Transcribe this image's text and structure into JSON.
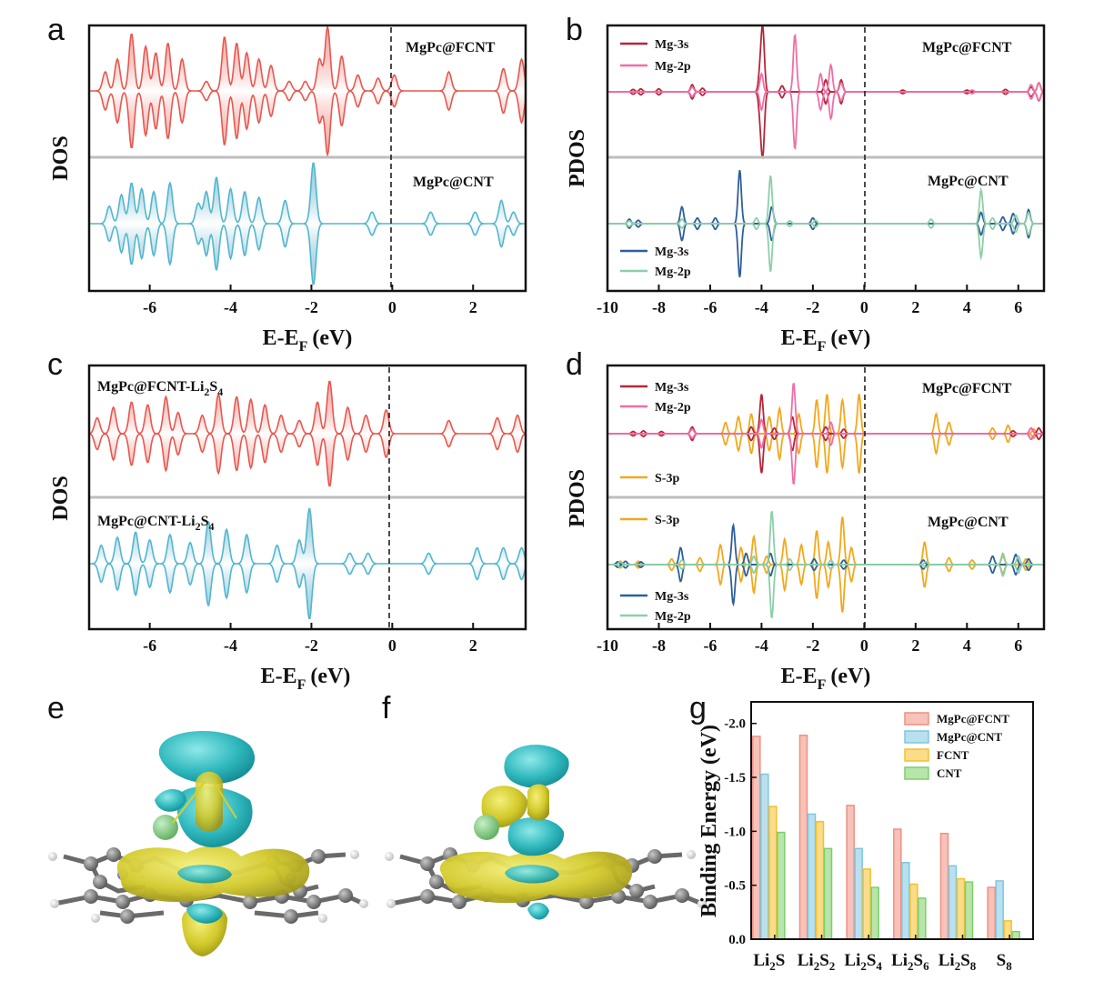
{
  "panel_letters": [
    "a",
    "b",
    "c",
    "d",
    "e",
    "f",
    "g"
  ],
  "xlabel_main": "E-E",
  "xlabel_sub": "F",
  "xlabel_unit": "(eV)",
  "panel_a": {
    "ylabel": "DOS",
    "top_label": "MgPc@FCNT",
    "bottom_label": "MgPc@CNT"
  },
  "panel_b": {
    "ylabel": "PDOS",
    "top_label": "MgPc@FCNT",
    "bottom_label": "MgPc@CNT",
    "top_legend": [
      "Mg-3s",
      "Mg-2p"
    ],
    "bottom_legend": [
      "Mg-3s",
      "Mg-2p"
    ]
  },
  "panel_c": {
    "ylabel": "DOS",
    "top_label_main": "MgPc@FCNT-Li",
    "top_label_sub1": "2",
    "top_label_mid": "S",
    "top_label_sub2": "4",
    "bottom_label_main": "MgPc@CNT-Li",
    "bottom_label_sub1": "2",
    "bottom_label_mid": "S",
    "bottom_label_sub2": "4"
  },
  "panel_d": {
    "ylabel": "PDOS",
    "top_label": "MgPc@FCNT",
    "bottom_label": "MgPc@CNT",
    "top_legend": [
      "Mg-3s",
      "Mg-2p",
      "S-3p"
    ],
    "bottom_legend": [
      "S-3p",
      "Mg-3s",
      "Mg-2p"
    ]
  },
  "colors": {
    "fcnt": "#e8574e",
    "cnt": "#52b6cf",
    "mg3s_fcnt": "#b5263a",
    "mg2p_fcnt": "#ef6fa6",
    "mg3s_cnt": "#2d5f9a",
    "mg2p_cnt": "#8dcfa8",
    "s3p": "#f2a81c",
    "iso_cyan": "#3fc5c9",
    "iso_yellow": "#d9d12a",
    "atom_c": "#7a7a7a",
    "atom_h": "#e8e8e8",
    "atom_n": "#6b6fd6",
    "atom_cl": "#7fc97f"
  },
  "chart_data": [
    {
      "panel": "a",
      "type": "area",
      "x_ticks": [
        -6,
        -4,
        -2,
        0,
        2
      ],
      "xlim": [
        -7.5,
        3.3
      ],
      "series": [
        {
          "name": "MgPc@FCNT",
          "peaks": [
            [
              -7.1,
              0.3
            ],
            [
              -6.8,
              0.5
            ],
            [
              -6.45,
              0.9
            ],
            [
              -6.1,
              0.7
            ],
            [
              -5.85,
              0.6
            ],
            [
              -5.55,
              0.75
            ],
            [
              -5.2,
              0.5
            ],
            [
              -4.6,
              0.15
            ],
            [
              -4.15,
              0.85
            ],
            [
              -3.85,
              0.75
            ],
            [
              -3.6,
              0.6
            ],
            [
              -3.3,
              0.5
            ],
            [
              -3.0,
              0.4
            ],
            [
              -2.55,
              0.15
            ],
            [
              -2.15,
              0.15
            ],
            [
              -1.8,
              0.5
            ],
            [
              -1.6,
              1.0
            ],
            [
              -1.25,
              0.55
            ],
            [
              -0.85,
              0.25
            ],
            [
              -0.35,
              0.2
            ],
            [
              0.05,
              0.25
            ],
            [
              1.4,
              0.3
            ],
            [
              2.75,
              0.35
            ],
            [
              3.2,
              0.5
            ]
          ]
        },
        {
          "name": "MgPc@CNT",
          "peaks": [
            [
              -7.0,
              0.3
            ],
            [
              -6.7,
              0.5
            ],
            [
              -6.45,
              0.7
            ],
            [
              -6.2,
              0.6
            ],
            [
              -5.9,
              0.55
            ],
            [
              -5.5,
              0.7
            ],
            [
              -4.8,
              0.35
            ],
            [
              -4.6,
              0.55
            ],
            [
              -4.35,
              0.8
            ],
            [
              -4.0,
              0.6
            ],
            [
              -3.65,
              0.55
            ],
            [
              -3.3,
              0.45
            ],
            [
              -2.65,
              0.4
            ],
            [
              -1.95,
              1.05
            ],
            [
              -0.5,
              0.2
            ],
            [
              0.95,
              0.2
            ],
            [
              2.05,
              0.2
            ],
            [
              2.7,
              0.4
            ],
            [
              3.0,
              0.2
            ]
          ]
        }
      ]
    },
    {
      "panel": "b",
      "type": "line",
      "x_ticks": [
        -10,
        -8,
        -6,
        -4,
        -2,
        0,
        2,
        4,
        6
      ],
      "xlim": [
        -10,
        7
      ],
      "series": [
        {
          "name": "Mg-3s",
          "group": "MgPc@FCNT",
          "peaks": [
            [
              -9.0,
              0.04
            ],
            [
              -8.7,
              0.05
            ],
            [
              -8.0,
              0.05
            ],
            [
              -6.7,
              0.12
            ],
            [
              -6.3,
              0.06
            ],
            [
              -4.05,
              0.35
            ],
            [
              -3.95,
              1.0
            ],
            [
              -3.2,
              0.1
            ],
            [
              -1.5,
              0.2
            ],
            [
              -0.9,
              0.2
            ],
            [
              1.5,
              0.03
            ],
            [
              4.0,
              0.03
            ],
            [
              5.5,
              0.04
            ],
            [
              6.5,
              0.08
            ],
            [
              6.8,
              0.15
            ]
          ]
        },
        {
          "name": "Mg-2p",
          "group": "MgPc@FCNT",
          "peaks": [
            [
              -6.7,
              0.08
            ],
            [
              -4.0,
              0.3
            ],
            [
              -2.7,
              0.95
            ],
            [
              -1.7,
              0.3
            ],
            [
              -1.3,
              0.45
            ],
            [
              -0.9,
              0.15
            ],
            [
              4.2,
              0.03
            ],
            [
              6.5,
              0.12
            ],
            [
              6.8,
              0.15
            ]
          ]
        },
        {
          "name": "Mg-3s",
          "group": "MgPc@CNT",
          "peaks": [
            [
              -9.15,
              0.08
            ],
            [
              -8.8,
              0.06
            ],
            [
              -7.1,
              0.3
            ],
            [
              -6.5,
              0.1
            ],
            [
              -5.8,
              0.1
            ],
            [
              -4.85,
              0.95
            ],
            [
              -3.6,
              0.3
            ],
            [
              -2.0,
              0.1
            ],
            [
              4.55,
              0.2
            ],
            [
              5.4,
              0.12
            ],
            [
              5.8,
              0.18
            ],
            [
              6.4,
              0.25
            ]
          ]
        },
        {
          "name": "Mg-2p",
          "group": "MgPc@CNT",
          "peaks": [
            [
              -9.15,
              0.05
            ],
            [
              -7.1,
              0.08
            ],
            [
              -4.2,
              0.1
            ],
            [
              -3.65,
              0.85
            ],
            [
              -2.9,
              0.05
            ],
            [
              -1.9,
              0.06
            ],
            [
              2.6,
              0.08
            ],
            [
              4.55,
              0.6
            ],
            [
              5.0,
              0.1
            ],
            [
              5.9,
              0.15
            ],
            [
              6.4,
              0.2
            ]
          ]
        }
      ]
    },
    {
      "panel": "c",
      "type": "area",
      "x_ticks": [
        -6,
        -4,
        -2,
        0,
        2
      ],
      "xlim": [
        -7.5,
        3.3
      ],
      "series": [
        {
          "name": "MgPc@FCNT-Li2S4",
          "peaks": [
            [
              -7.3,
              0.3
            ],
            [
              -6.9,
              0.5
            ],
            [
              -6.45,
              0.6
            ],
            [
              -6.05,
              0.55
            ],
            [
              -5.6,
              0.7
            ],
            [
              -5.3,
              0.4
            ],
            [
              -4.7,
              0.35
            ],
            [
              -4.3,
              0.75
            ],
            [
              -3.85,
              0.7
            ],
            [
              -3.5,
              0.65
            ],
            [
              -3.15,
              0.55
            ],
            [
              -2.75,
              0.35
            ],
            [
              -2.3,
              0.25
            ],
            [
              -1.85,
              0.6
            ],
            [
              -1.55,
              1.0
            ],
            [
              -1.1,
              0.5
            ],
            [
              -0.65,
              0.35
            ],
            [
              -0.15,
              0.45
            ],
            [
              1.4,
              0.25
            ],
            [
              2.6,
              0.3
            ],
            [
              3.1,
              0.35
            ]
          ]
        },
        {
          "name": "MgPc@CNT-Li2S4",
          "peaks": [
            [
              -7.2,
              0.35
            ],
            [
              -6.8,
              0.5
            ],
            [
              -6.35,
              0.6
            ],
            [
              -6.0,
              0.45
            ],
            [
              -5.5,
              0.55
            ],
            [
              -5.0,
              0.4
            ],
            [
              -4.55,
              0.8
            ],
            [
              -4.1,
              0.65
            ],
            [
              -3.6,
              0.55
            ],
            [
              -2.85,
              0.35
            ],
            [
              -2.3,
              0.45
            ],
            [
              -2.05,
              1.05
            ],
            [
              -1.05,
              0.2
            ],
            [
              -0.6,
              0.2
            ],
            [
              0.9,
              0.2
            ],
            [
              2.1,
              0.3
            ],
            [
              2.75,
              0.3
            ],
            [
              3.2,
              0.3
            ]
          ]
        }
      ]
    },
    {
      "panel": "d",
      "type": "line",
      "x_ticks": [
        -10,
        -8,
        -6,
        -4,
        -2,
        0,
        2,
        4,
        6
      ],
      "xlim": [
        -10,
        7
      ],
      "series": [
        {
          "name": "Mg-3s",
          "group": "MgPc@FCNT",
          "peaks": [
            [
              -9.0,
              0.04
            ],
            [
              -8.6,
              0.05
            ],
            [
              -7.9,
              0.04
            ],
            [
              -6.7,
              0.12
            ],
            [
              -4.4,
              0.12
            ],
            [
              -4.0,
              0.7
            ],
            [
              -3.5,
              0.1
            ],
            [
              -2.8,
              0.3
            ],
            [
              -1.5,
              0.12
            ],
            [
              -0.8,
              0.08
            ],
            [
              5.8,
              0.05
            ],
            [
              6.5,
              0.1
            ],
            [
              6.8,
              0.1
            ]
          ]
        },
        {
          "name": "Mg-2p",
          "group": "MgPc@FCNT",
          "peaks": [
            [
              -6.7,
              0.08
            ],
            [
              -4.0,
              0.25
            ],
            [
              -2.75,
              0.9
            ],
            [
              -1.3,
              0.2
            ],
            [
              6.5,
              0.1
            ]
          ]
        },
        {
          "name": "S-3p",
          "group": "MgPc@FCNT",
          "peaks": [
            [
              -6.7,
              0.1
            ],
            [
              -5.4,
              0.2
            ],
            [
              -4.9,
              0.3
            ],
            [
              -4.4,
              0.35
            ],
            [
              -3.7,
              0.3
            ],
            [
              -3.3,
              0.45
            ],
            [
              -2.55,
              0.35
            ],
            [
              -1.85,
              0.6
            ],
            [
              -1.45,
              0.7
            ],
            [
              -0.85,
              0.6
            ],
            [
              -0.2,
              0.7
            ],
            [
              2.8,
              0.35
            ],
            [
              3.3,
              0.2
            ],
            [
              5.0,
              0.1
            ],
            [
              5.6,
              0.15
            ],
            [
              6.6,
              0.08
            ]
          ]
        },
        {
          "name": "S-3p",
          "group": "MgPc@CNT",
          "peaks": [
            [
              -9.5,
              0.06
            ],
            [
              -8.8,
              0.06
            ],
            [
              -7.5,
              0.1
            ],
            [
              -6.4,
              0.12
            ],
            [
              -5.6,
              0.35
            ],
            [
              -4.8,
              0.3
            ],
            [
              -4.3,
              0.5
            ],
            [
              -3.8,
              0.15
            ],
            [
              -3.1,
              0.45
            ],
            [
              -2.45,
              0.35
            ],
            [
              -1.85,
              0.6
            ],
            [
              -1.4,
              0.4
            ],
            [
              -0.85,
              0.85
            ],
            [
              -0.5,
              0.3
            ],
            [
              2.35,
              0.4
            ],
            [
              3.3,
              0.12
            ],
            [
              4.2,
              0.08
            ],
            [
              5.4,
              0.15
            ],
            [
              6.3,
              0.1
            ]
          ]
        },
        {
          "name": "Mg-3s",
          "group": "MgPc@CNT",
          "peaks": [
            [
              -9.6,
              0.05
            ],
            [
              -9.3,
              0.06
            ],
            [
              -8.7,
              0.05
            ],
            [
              -7.15,
              0.3
            ],
            [
              -5.1,
              0.7
            ],
            [
              -4.6,
              0.2
            ],
            [
              -3.65,
              0.2
            ],
            [
              -1.95,
              0.1
            ],
            [
              -0.8,
              0.08
            ],
            [
              2.3,
              0.08
            ],
            [
              5.0,
              0.15
            ],
            [
              5.9,
              0.18
            ],
            [
              6.4,
              0.1
            ]
          ]
        },
        {
          "name": "Mg-2p",
          "group": "MgPc@CNT",
          "peaks": [
            [
              -9.5,
              0.05
            ],
            [
              -7.1,
              0.08
            ],
            [
              -4.3,
              0.15
            ],
            [
              -3.6,
              0.95
            ],
            [
              -2.9,
              0.1
            ],
            [
              -1.3,
              0.08
            ],
            [
              2.4,
              0.05
            ],
            [
              5.4,
              0.2
            ],
            [
              6.0,
              0.15
            ]
          ]
        }
      ]
    },
    {
      "panel": "g",
      "type": "bar",
      "ylabel": "Binding Energy (eV)",
      "y_ticks": [
        "-2.0",
        "-1.5",
        "-1.0",
        "-0.5",
        "0.0"
      ],
      "ylim": [
        0,
        -2.2
      ],
      "categories": [
        "Li2S",
        "Li2S2",
        "Li2S4",
        "Li2S6",
        "Li2S8",
        "S8"
      ],
      "category_labels": [
        {
          "main": "Li",
          "sub1": "2",
          "mid": "S",
          "sub2": ""
        },
        {
          "main": "Li",
          "sub1": "2",
          "mid": "S",
          "sub2": "2"
        },
        {
          "main": "Li",
          "sub1": "2",
          "mid": "S",
          "sub2": "4"
        },
        {
          "main": "Li",
          "sub1": "2",
          "mid": "S",
          "sub2": "6"
        },
        {
          "main": "Li",
          "sub1": "2",
          "mid": "S",
          "sub2": "8"
        },
        {
          "main": "S",
          "sub1": "8",
          "mid": "",
          "sub2": ""
        }
      ],
      "series": [
        {
          "name": "MgPc@FCNT",
          "color": "#f0907f",
          "values": [
            -1.88,
            -1.89,
            -1.24,
            -1.02,
            -0.98,
            -0.48
          ]
        },
        {
          "name": "MgPc@CNT",
          "color": "#7fc6e0",
          "values": [
            -1.53,
            -1.16,
            -0.84,
            -0.71,
            -0.68,
            -0.54
          ]
        },
        {
          "name": "FCNT",
          "color": "#f5c02a",
          "values": [
            -1.23,
            -1.09,
            -0.65,
            -0.51,
            -0.56,
            -0.17
          ]
        },
        {
          "name": "CNT",
          "color": "#7dcf68",
          "values": [
            -0.99,
            -0.84,
            -0.48,
            -0.38,
            -0.53,
            -0.07
          ]
        }
      ]
    }
  ]
}
